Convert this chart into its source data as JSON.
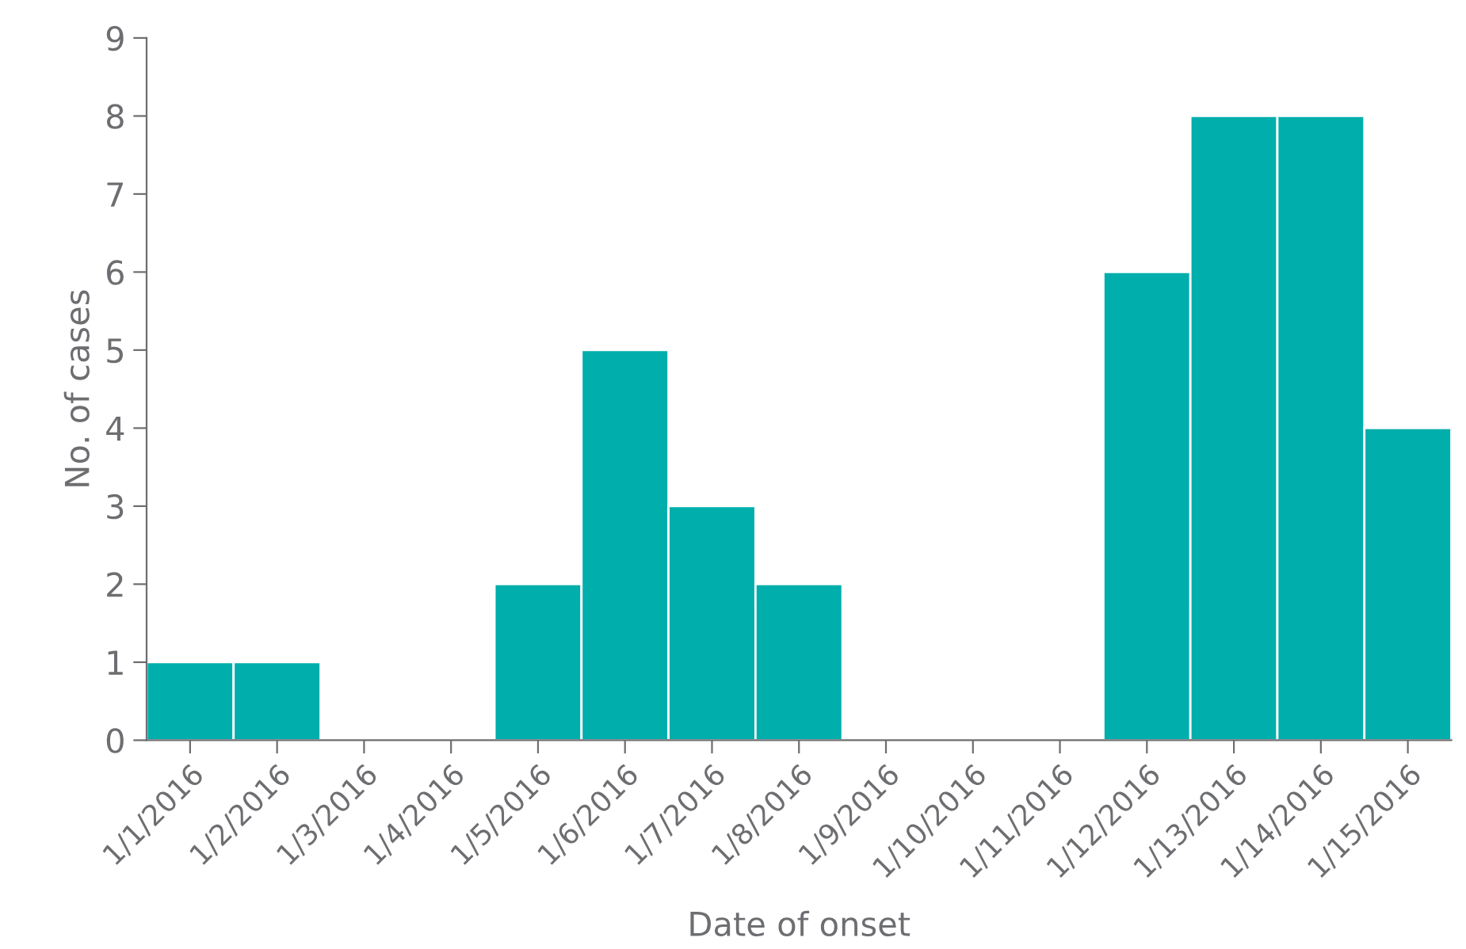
{
  "chart_data": {
    "type": "bar",
    "xlabel": "Date of onset",
    "ylabel": "No. of cases",
    "categories": [
      "1/1/2016",
      "1/2/2016",
      "1/3/2016",
      "1/4/2016",
      "1/5/2016",
      "1/6/2016",
      "1/7/2016",
      "1/8/2016",
      "1/9/2016",
      "1/10/2016",
      "1/11/2016",
      "1/12/2016",
      "1/13/2016",
      "1/14/2016",
      "1/15/2016"
    ],
    "values": [
      1,
      1,
      0,
      0,
      2,
      5,
      3,
      2,
      0,
      0,
      0,
      6,
      8,
      8,
      4
    ],
    "color": "#00aeac",
    "ylim": [
      0,
      9
    ],
    "yticks": [
      0,
      1,
      2,
      3,
      4,
      5,
      6,
      7,
      8,
      9
    ],
    "grid": false,
    "legend": false
  }
}
